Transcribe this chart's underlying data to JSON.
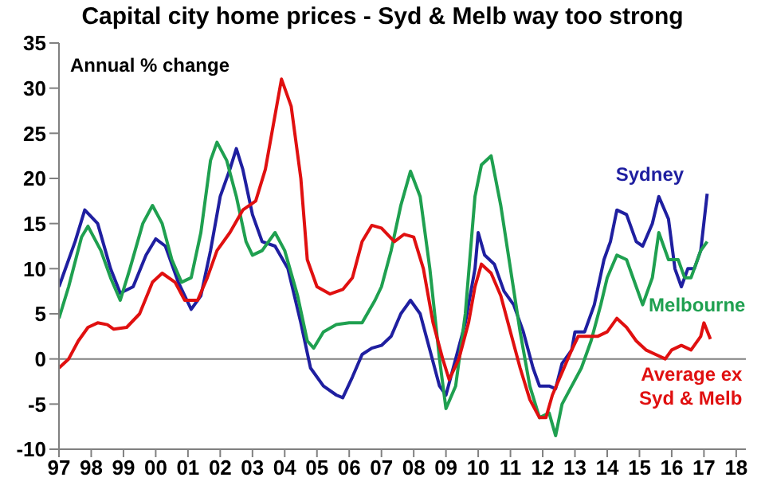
{
  "chart_data": {
    "type": "line",
    "title": "Capital city home prices - Syd & Melb way too strong",
    "ylabel": "Annual % change",
    "xlim": [
      1997,
      2018.3
    ],
    "xticks": [
      {
        "value": 1997,
        "label": "97"
      },
      {
        "value": 1998,
        "label": "98"
      },
      {
        "value": 1999,
        "label": "99"
      },
      {
        "value": 2000,
        "label": "00"
      },
      {
        "value": 2001,
        "label": "01"
      },
      {
        "value": 2002,
        "label": "02"
      },
      {
        "value": 2003,
        "label": "03"
      },
      {
        "value": 2004,
        "label": "04"
      },
      {
        "value": 2005,
        "label": "05"
      },
      {
        "value": 2006,
        "label": "06"
      },
      {
        "value": 2007,
        "label": "07"
      },
      {
        "value": 2008,
        "label": "08"
      },
      {
        "value": 2009,
        "label": "09"
      },
      {
        "value": 2010,
        "label": "10"
      },
      {
        "value": 2011,
        "label": "11"
      },
      {
        "value": 2012,
        "label": "12"
      },
      {
        "value": 2013,
        "label": "13"
      },
      {
        "value": 2014,
        "label": "14"
      },
      {
        "value": 2015,
        "label": "15"
      },
      {
        "value": 2016,
        "label": "16"
      },
      {
        "value": 2017,
        "label": "17"
      },
      {
        "value": 2018,
        "label": "18"
      }
    ],
    "ylim": [
      -10,
      35
    ],
    "yticks": [
      -10,
      -5,
      0,
      5,
      10,
      15,
      20,
      25,
      30,
      35
    ],
    "marker": "none",
    "line_style": "solid",
    "ref_lines": [
      {
        "axis": "y",
        "value": 0,
        "color": "#808080"
      }
    ],
    "series": [
      {
        "name": "Sydney",
        "color": "#1f1fa0",
        "x": [
          1997.0,
          1997.5,
          1997.8,
          1998.2,
          1998.6,
          1998.9,
          1999.3,
          1999.7,
          2000.0,
          2000.3,
          2000.7,
          2001.1,
          2001.4,
          2001.7,
          2002.0,
          2002.3,
          2002.5,
          2002.7,
          2003.0,
          2003.3,
          2003.7,
          2004.1,
          2004.5,
          2004.8,
          2005.2,
          2005.6,
          2005.8,
          2006.1,
          2006.4,
          2006.7,
          2007.0,
          2007.3,
          2007.6,
          2007.9,
          2008.2,
          2008.5,
          2008.8,
          2009.0,
          2009.3,
          2009.6,
          2009.9,
          2010.0,
          2010.2,
          2010.5,
          2010.8,
          2011.1,
          2011.4,
          2011.7,
          2011.9,
          2012.2,
          2012.4,
          2012.6,
          2012.9,
          2013.0,
          2013.3,
          2013.6,
          2013.9,
          2014.1,
          2014.3,
          2014.6,
          2014.9,
          2015.1,
          2015.4,
          2015.6,
          2015.9,
          2016.1,
          2016.3,
          2016.5,
          2016.7,
          2016.9,
          2017.1
        ],
        "values": [
          8,
          13,
          16.5,
          15,
          10,
          7.3,
          8,
          11.5,
          13.3,
          12.5,
          8.5,
          5.5,
          7,
          12,
          18,
          21,
          23.3,
          21,
          16,
          13,
          12.5,
          10,
          4,
          -1,
          -3,
          -4,
          -4.3,
          -2,
          0.5,
          1.2,
          1.5,
          2.5,
          5,
          6.5,
          5,
          1,
          -3,
          -4,
          0,
          4,
          10,
          14,
          11.5,
          10.5,
          7.5,
          6,
          3,
          -1,
          -3,
          -3,
          -3.3,
          -0.5,
          1,
          3,
          3,
          6,
          11,
          13,
          16.5,
          16,
          13,
          12.5,
          15,
          18,
          15.5,
          10,
          8,
          10,
          10,
          12,
          18.3
        ]
      },
      {
        "name": "Melbourne",
        "color": "#1fa050",
        "x": [
          1997.0,
          1997.3,
          1997.7,
          1997.9,
          1998.3,
          1998.6,
          1998.9,
          1999.2,
          1999.6,
          1999.9,
          2000.2,
          2000.5,
          2000.8,
          2001.1,
          2001.4,
          2001.7,
          2001.9,
          2002.2,
          2002.5,
          2002.8,
          2003.0,
          2003.3,
          2003.7,
          2004.0,
          2004.4,
          2004.7,
          2004.9,
          2005.2,
          2005.6,
          2006.0,
          2006.4,
          2006.8,
          2007.0,
          2007.3,
          2007.6,
          2007.9,
          2008.2,
          2008.5,
          2008.8,
          2009.0,
          2009.3,
          2009.6,
          2009.9,
          2010.1,
          2010.4,
          2010.7,
          2011.0,
          2011.3,
          2011.6,
          2011.9,
          2012.2,
          2012.4,
          2012.6,
          2012.9,
          2013.2,
          2013.5,
          2013.8,
          2014.0,
          2014.3,
          2014.6,
          2014.9,
          2015.1,
          2015.4,
          2015.6,
          2015.9,
          2016.2,
          2016.4,
          2016.6,
          2016.9,
          2017.1
        ],
        "values": [
          4.5,
          8,
          13.5,
          14.7,
          12,
          9,
          6.5,
          10,
          15,
          17,
          15,
          11,
          8.5,
          9,
          14,
          22,
          24,
          22,
          18,
          13,
          11.5,
          12,
          14,
          12,
          7,
          2,
          1.2,
          3,
          3.8,
          4,
          4,
          6.5,
          8,
          12,
          17,
          20.8,
          18,
          10,
          0,
          -5.5,
          -3,
          5,
          18,
          21.5,
          22.5,
          17,
          10,
          3,
          -3,
          -6.5,
          -6,
          -8.5,
          -5,
          -3,
          -1,
          2,
          6,
          9,
          11.5,
          11,
          8,
          6,
          9,
          14,
          11,
          11,
          9,
          9,
          12,
          13
        ]
      },
      {
        "name": "Average ex Syd & Melb",
        "color": "#e01010",
        "x": [
          1997.0,
          1997.3,
          1997.6,
          1997.9,
          1998.2,
          1998.5,
          1998.7,
          1999.1,
          1999.5,
          1999.9,
          2000.2,
          2000.6,
          2000.9,
          2001.3,
          2001.6,
          2001.9,
          2002.3,
          2002.7,
          2003.1,
          2003.4,
          2003.7,
          2003.9,
          2004.2,
          2004.5,
          2004.7,
          2005.0,
          2005.4,
          2005.8,
          2006.1,
          2006.4,
          2006.7,
          2007.0,
          2007.4,
          2007.7,
          2008.0,
          2008.3,
          2008.6,
          2008.9,
          2009.1,
          2009.4,
          2009.7,
          2009.9,
          2010.1,
          2010.4,
          2010.7,
          2011.0,
          2011.3,
          2011.6,
          2011.9,
          2012.1,
          2012.3,
          2012.6,
          2012.9,
          2013.1,
          2013.4,
          2013.7,
          2014.0,
          2014.3,
          2014.6,
          2014.9,
          2015.2,
          2015.5,
          2015.8,
          2016.0,
          2016.3,
          2016.6,
          2016.9,
          2017.0,
          2017.2
        ],
        "values": [
          -1,
          0,
          2,
          3.5,
          4,
          3.8,
          3.3,
          3.5,
          5,
          8.5,
          9.5,
          8.5,
          6.5,
          6.5,
          9,
          12,
          14,
          16.5,
          17.5,
          21,
          27,
          31,
          28,
          20,
          11,
          8,
          7.2,
          7.7,
          9,
          13,
          14.8,
          14.5,
          13,
          13.8,
          13.5,
          10,
          4,
          0,
          -2.3,
          0,
          4,
          8,
          10.5,
          9.5,
          7,
          3,
          -1,
          -4.5,
          -6.5,
          -6.5,
          -4,
          -1.5,
          1,
          2.5,
          2.5,
          2.5,
          3,
          4.5,
          3.5,
          2,
          1,
          0.5,
          0,
          1,
          1.5,
          1,
          2.5,
          4,
          2.2
        ]
      }
    ]
  }
}
